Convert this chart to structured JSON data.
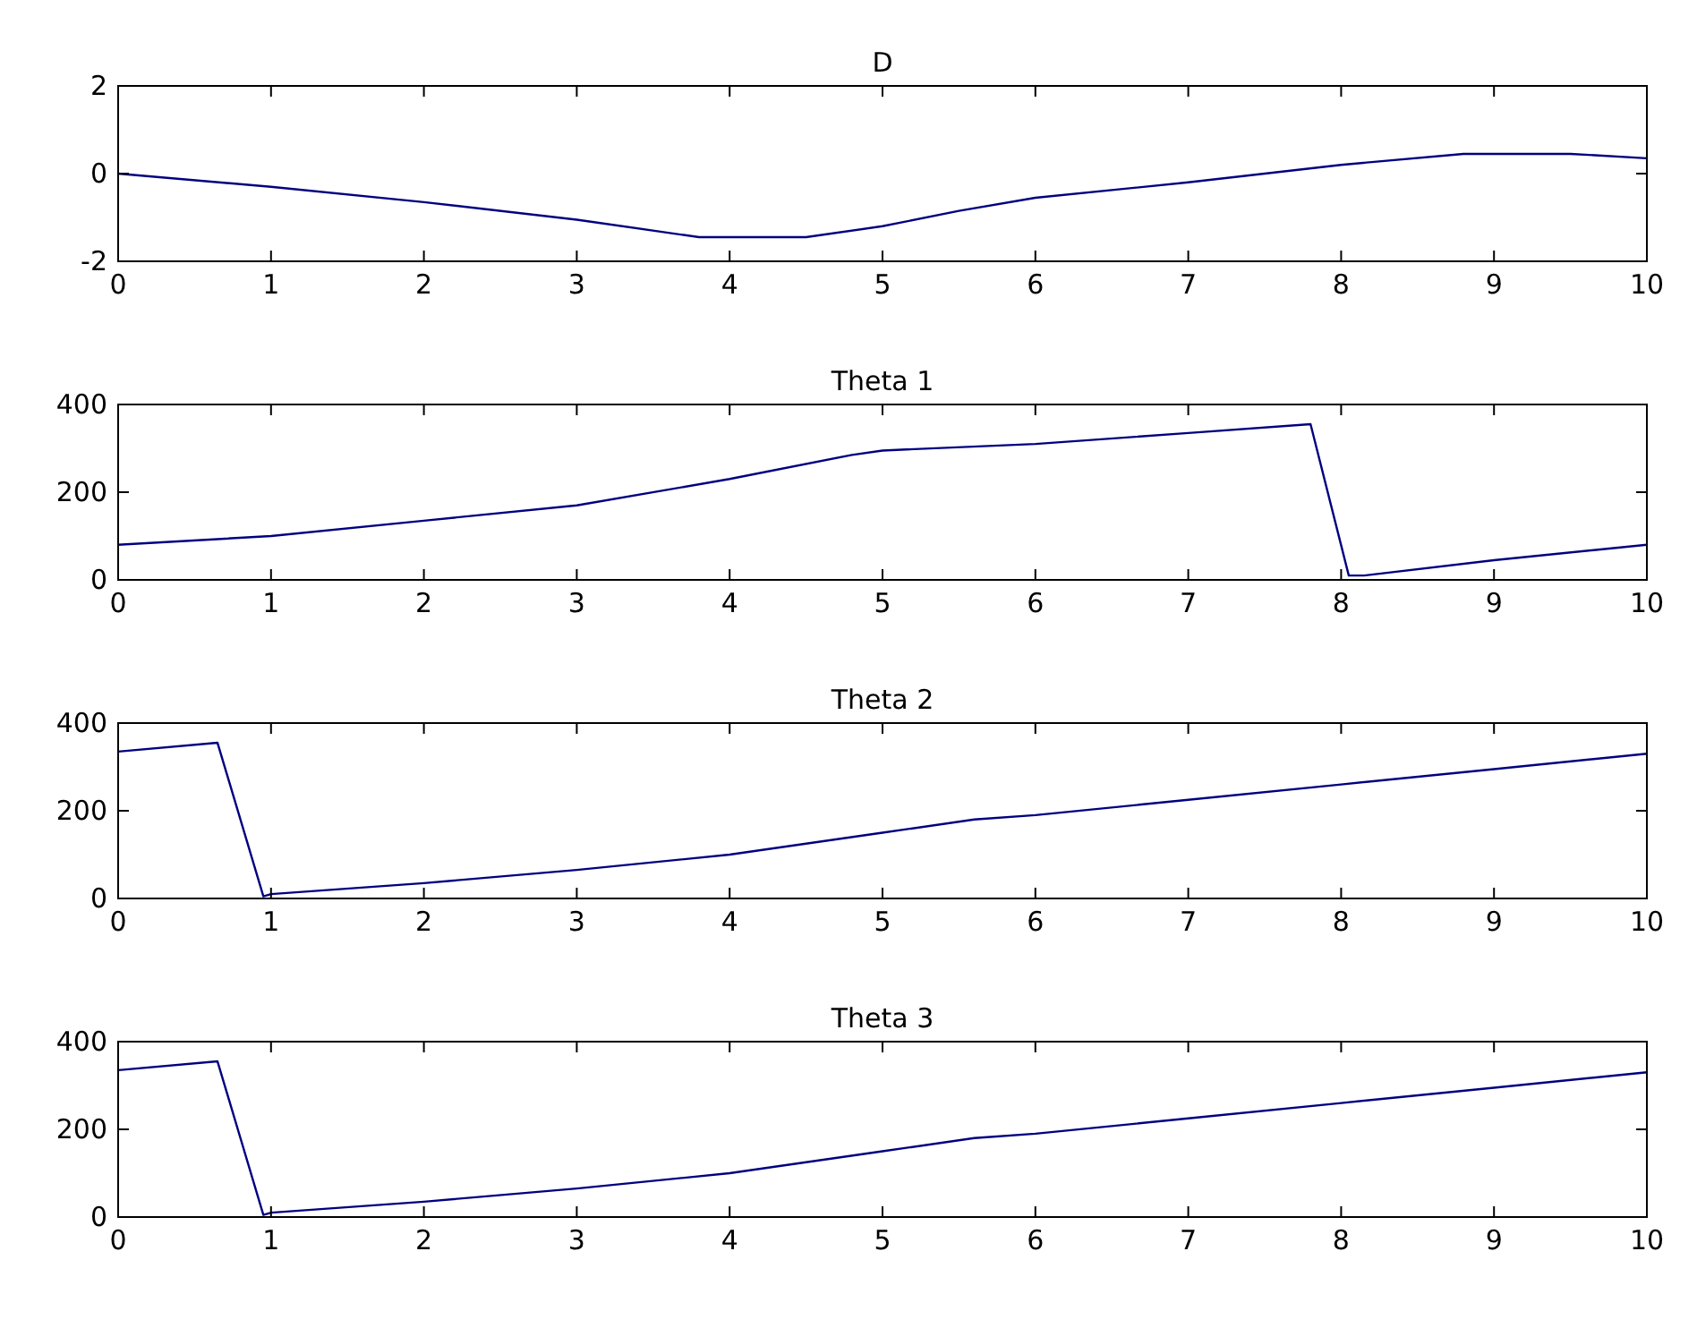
{
  "chart_data": [
    {
      "type": "line",
      "title": "D",
      "x": [
        0,
        1,
        2,
        3,
        3.8,
        4.5,
        5,
        5.5,
        6,
        7,
        8,
        8.8,
        9.5,
        10
      ],
      "series": [
        {
          "color": "#000080",
          "values": [
            0,
            -0.3,
            -0.65,
            -1.05,
            -1.45,
            -1.45,
            -1.2,
            -0.85,
            -0.55,
            -0.2,
            0.2,
            0.45,
            0.45,
            0.35
          ]
        }
      ],
      "xlim": [
        0,
        10
      ],
      "xticks": [
        0,
        1,
        2,
        3,
        4,
        5,
        6,
        7,
        8,
        9,
        10
      ],
      "ylim": [
        -2,
        2
      ],
      "yticks": [
        -2,
        0,
        2
      ],
      "grid": false
    },
    {
      "type": "line",
      "title": "Theta 1",
      "x": [
        0,
        1,
        2,
        3,
        4,
        4.8,
        5,
        6,
        7,
        7.8,
        8.05,
        8.15,
        9,
        10
      ],
      "series": [
        {
          "color": "#000080",
          "values": [
            80,
            100,
            135,
            170,
            230,
            285,
            295,
            310,
            335,
            355,
            10,
            10,
            45,
            80
          ]
        }
      ],
      "xlim": [
        0,
        10
      ],
      "xticks": [
        0,
        1,
        2,
        3,
        4,
        5,
        6,
        7,
        8,
        9,
        10
      ],
      "ylim": [
        0,
        400
      ],
      "yticks": [
        0,
        200,
        400
      ],
      "grid": false
    },
    {
      "type": "line",
      "title": "Theta 2",
      "x": [
        0,
        0.65,
        0.95,
        1,
        2,
        3,
        4,
        5,
        5.6,
        6,
        7,
        8,
        9,
        10
      ],
      "series": [
        {
          "color": "#000080",
          "values": [
            335,
            355,
            5,
            10,
            35,
            65,
            100,
            150,
            180,
            190,
            225,
            260,
            295,
            330
          ]
        }
      ],
      "xlim": [
        0,
        10
      ],
      "xticks": [
        0,
        1,
        2,
        3,
        4,
        5,
        6,
        7,
        8,
        9,
        10
      ],
      "ylim": [
        0,
        400
      ],
      "yticks": [
        0,
        200,
        400
      ],
      "grid": false
    },
    {
      "type": "line",
      "title": "Theta 3",
      "x": [
        0,
        0.65,
        0.95,
        1,
        2,
        3,
        4,
        5,
        5.6,
        6,
        7,
        8,
        9,
        10
      ],
      "series": [
        {
          "color": "#000080",
          "values": [
            335,
            355,
            5,
            10,
            35,
            65,
            100,
            150,
            180,
            190,
            225,
            260,
            295,
            330
          ]
        }
      ],
      "xlim": [
        0,
        10
      ],
      "xticks": [
        0,
        1,
        2,
        3,
        4,
        5,
        6,
        7,
        8,
        9,
        10
      ],
      "ylim": [
        0,
        400
      ],
      "yticks": [
        0,
        200,
        400
      ],
      "grid": false
    }
  ]
}
